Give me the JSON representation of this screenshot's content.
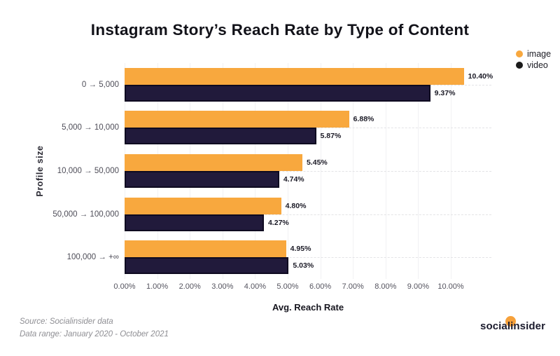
{
  "title": "Instagram Story’s Reach Rate by Type of Content",
  "colors": {
    "image_orange": "#F8A83E",
    "video_navy": "#211A3B",
    "video_border": "#0E0A20",
    "logo_orange": "#F6A13B",
    "legend_video_dot": "#1b1b1b"
  },
  "legend": [
    {
      "label": "image",
      "color": "#F8A83E"
    },
    {
      "label": "video",
      "color": "#1b1b1b"
    }
  ],
  "chart_data": {
    "type": "bar",
    "orientation": "horizontal",
    "title": "Instagram Story’s Reach Rate by Type of Content",
    "categories": [
      "0 → 5,000",
      "5,000 → 10,000",
      "10,000 → 50,000",
      "50,000 → 100,000",
      "100,000 → +∞"
    ],
    "series": [
      {
        "name": "image",
        "color": "#F8A83E",
        "values": [
          10.4,
          6.88,
          5.45,
          4.8,
          4.95
        ],
        "labels": [
          "10.40%",
          "6.88%",
          "5.45%",
          "4.80%",
          "4.95%"
        ]
      },
      {
        "name": "video",
        "color": "#211A3B",
        "values": [
          9.37,
          5.87,
          4.74,
          4.27,
          5.03
        ],
        "labels": [
          "9.37%",
          "5.87%",
          "4.74%",
          "4.27%",
          "5.03%"
        ]
      }
    ],
    "xlabel": "Avg. Reach Rate",
    "ylabel": "Profile size",
    "xlim": [
      0,
      11.25
    ],
    "x_ticks": [
      "0.00%",
      "1.00%",
      "2.00%",
      "3.00%",
      "4.00%",
      "5.00%",
      "6.00%",
      "7.00%",
      "8.00%",
      "9.00%",
      "10.00%"
    ],
    "grid": "vertical solid lines at each tick; dashed horizontal guide at each category center",
    "legend_position": "top-right"
  },
  "footer": {
    "source_line1": "Source: Socialinsider data",
    "source_line2": "Data range: January 2020 - October 2021",
    "logo_text": "socialinsider"
  }
}
